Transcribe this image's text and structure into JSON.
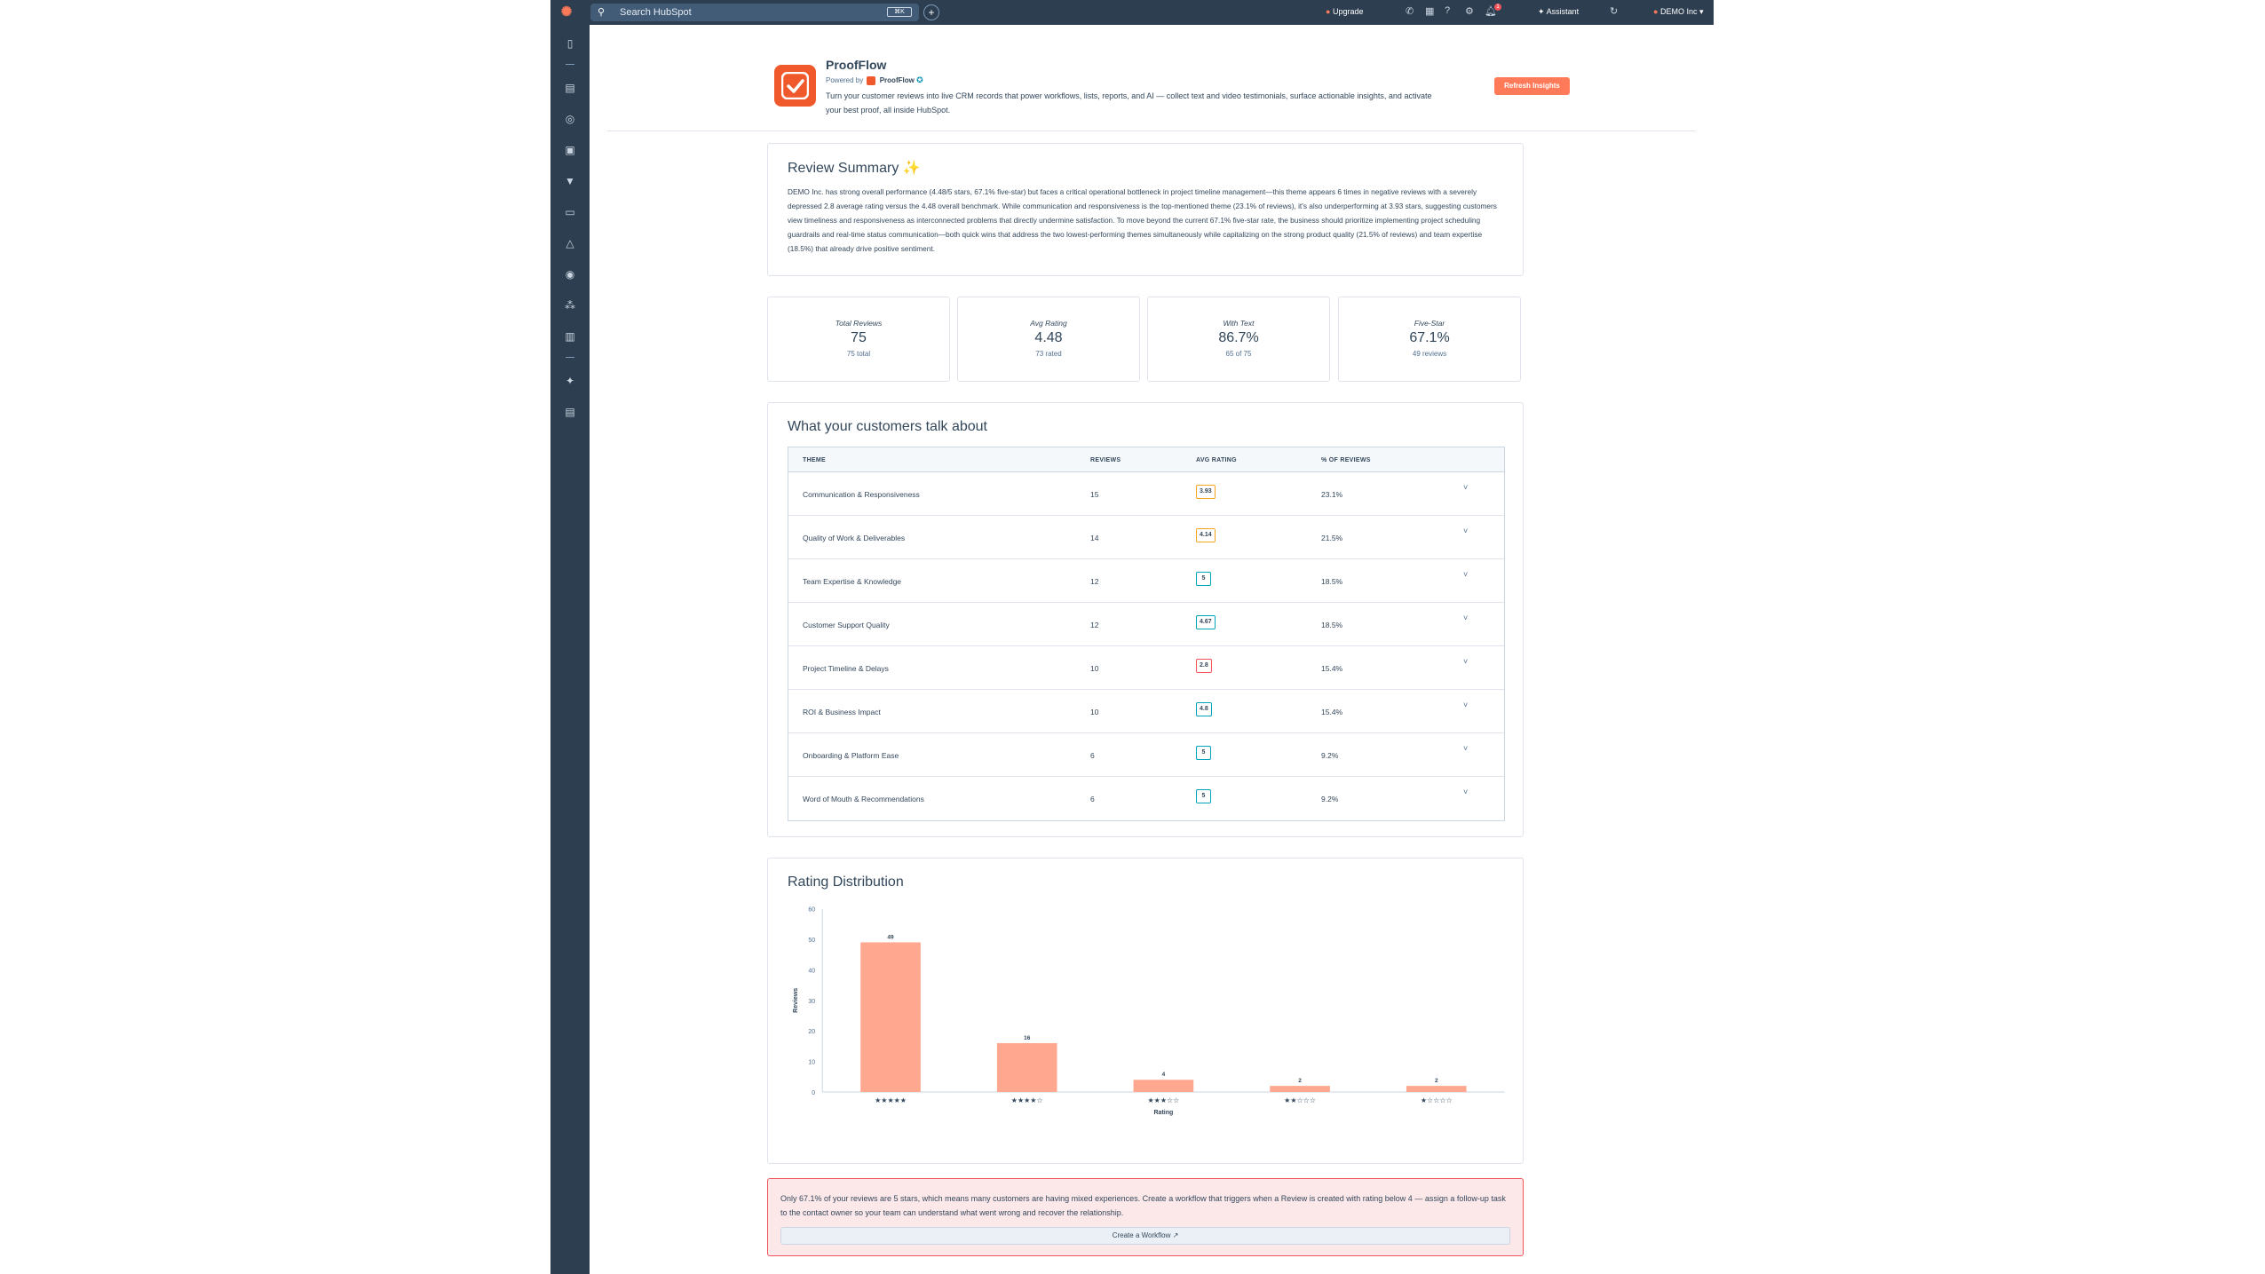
{
  "topbar": {
    "search_placeholder": "Search HubSpot",
    "search_kbd": "⌘K",
    "upgrade_label": "Upgrade",
    "assistant_label": "Assistant",
    "notification_count": "1",
    "account_name": "DEMO Inc"
  },
  "header": {
    "app_name": "ProofFlow",
    "powered_prefix": "Powered by",
    "powered_name": "ProofFlow",
    "description": "Turn your customer reviews into live CRM records that power workflows, lists, reports, and AI — collect text and video testimonials, surface actionable insights, and activate your best proof, all inside HubSpot.",
    "refresh_label": "Refresh Insights"
  },
  "summary": {
    "title": "Review Summary",
    "sparkle": "✨",
    "text": "DEMO Inc. has strong overall performance (4.48/5 stars, 67.1% five-star) but faces a critical operational bottleneck in project timeline management—this theme appears 6 times in negative reviews with a severely depressed 2.8 average rating versus the 4.48 overall benchmark. While communication and responsiveness is the top-mentioned theme (23.1% of reviews), it's also underperforming at 3.93 stars, suggesting customers view timeliness and responsiveness as interconnected problems that directly undermine satisfaction. To move beyond the current 67.1% five-star rate, the business should prioritize implementing project scheduling guardrails and real-time status communication—both quick wins that address the two lowest-performing themes simultaneously while capitalizing on the strong product quality (21.5% of reviews) and team expertise (18.5%) that already drive positive sentiment."
  },
  "stats": [
    {
      "label": "Total Reviews",
      "value": "75",
      "sub": "75 total"
    },
    {
      "label": "Avg Rating",
      "value": "4.48",
      "sub": "73 rated"
    },
    {
      "label": "With Text",
      "value": "86.7%",
      "sub": "65 of 75"
    },
    {
      "label": "Five-Star",
      "value": "67.1%",
      "sub": "49 reviews"
    }
  ],
  "themes": {
    "title": "What your customers talk about",
    "headers": {
      "theme": "THEME",
      "reviews": "REVIEWS",
      "avg": "AVG RATING",
      "pct": "% OF REVIEWS"
    },
    "rows": [
      {
        "theme": "Communication & Responsiveness",
        "reviews": "15",
        "avg": "3.93",
        "pct": "23.1%",
        "tone": "warn"
      },
      {
        "theme": "Quality of Work & Deliverables",
        "reviews": "14",
        "avg": "4.14",
        "pct": "21.5%",
        "tone": "warn"
      },
      {
        "theme": "Team Expertise & Knowledge",
        "reviews": "12",
        "avg": "5",
        "pct": "18.5%",
        "tone": "good"
      },
      {
        "theme": "Customer Support Quality",
        "reviews": "12",
        "avg": "4.67",
        "pct": "18.5%",
        "tone": "good"
      },
      {
        "theme": "Project Timeline & Delays",
        "reviews": "10",
        "avg": "2.8",
        "pct": "15.4%",
        "tone": "bad"
      },
      {
        "theme": "ROI & Business Impact",
        "reviews": "10",
        "avg": "4.8",
        "pct": "15.4%",
        "tone": "good"
      },
      {
        "theme": "Onboarding & Platform Ease",
        "reviews": "6",
        "avg": "5",
        "pct": "9.2%",
        "tone": "good"
      },
      {
        "theme": "Word of Mouth & Recommendations",
        "reviews": "6",
        "avg": "5",
        "pct": "9.2%",
        "tone": "good"
      }
    ],
    "row_menu": "˅"
  },
  "ratings": {
    "title": "Rating Distribution"
  },
  "chart_data": {
    "type": "bar",
    "categories": [
      "★★★★★",
      "★★★★☆",
      "★★★☆☆",
      "★★☆☆☆",
      "★☆☆☆☆"
    ],
    "values": [
      49,
      16,
      4,
      2,
      2
    ],
    "xlabel": "Rating",
    "ylabel": "Reviews",
    "ylim": [
      0,
      60
    ],
    "yticks": [
      0,
      10,
      20,
      30,
      40,
      50,
      60
    ],
    "grid": false,
    "bar_color": "#ffa78f"
  },
  "alert": {
    "text": "Only 67.1% of your reviews are 5 stars, which means many customers are having mixed experiences. Create a workflow that triggers when a Review is created with rating below 4 — assign a follow-up task to the contact owner so your team can understand what went wrong and recover the relationship.",
    "button_label": "Create a Workflow ↗"
  },
  "colors": {
    "accent": "#ff7a59",
    "nav": "#2d3e50",
    "warn": "#f5a623",
    "good": "#00a4bd",
    "bad": "#f2545b"
  }
}
